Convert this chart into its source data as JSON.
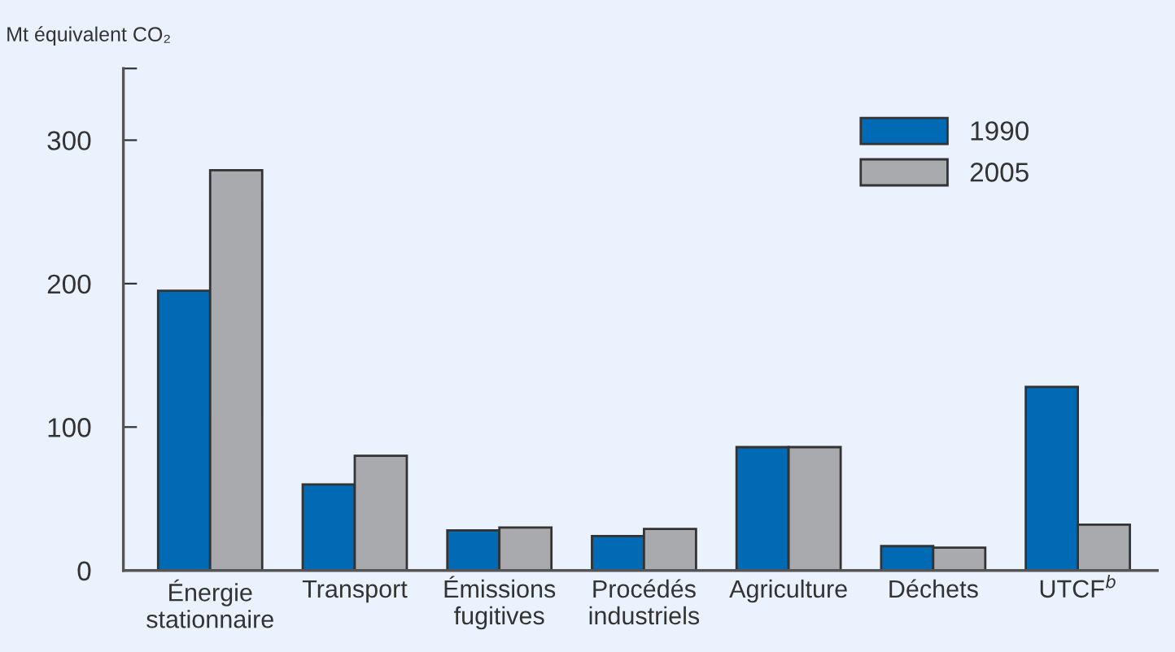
{
  "chart_data": {
    "type": "bar",
    "ylabel": "Mt équivalent CO₂",
    "categories": [
      "Énergie\nstationnaire",
      "Transport",
      "Émissions\nfugitives",
      "Procédés\nindustriels",
      "Agriculture",
      "Déchets",
      "UTCF$^{b}$"
    ],
    "series": [
      {
        "name": "1990",
        "color": "#006ab4",
        "values": [
          195,
          60,
          28,
          24,
          86,
          17,
          128
        ]
      },
      {
        "name": "2005",
        "color": "#a9aaae",
        "values": [
          279,
          80,
          30,
          29,
          86,
          16,
          32
        ]
      }
    ],
    "ylim": [
      0,
      350
    ],
    "yticks": [
      0,
      100,
      200,
      300,
      {
        "value": 350,
        "label": null
      }
    ],
    "grid": false,
    "legend": "top right"
  }
}
